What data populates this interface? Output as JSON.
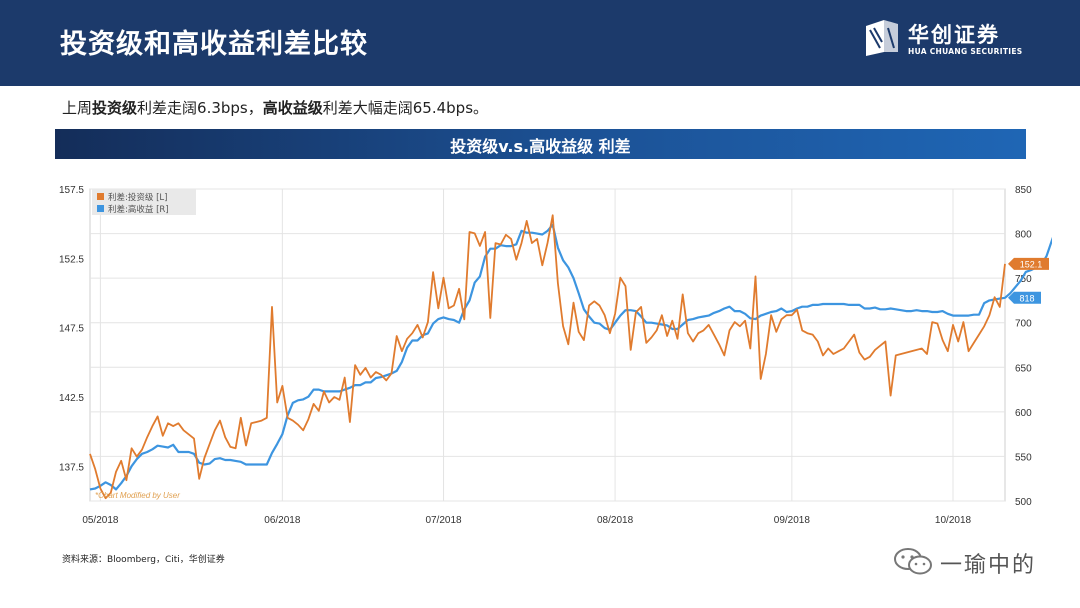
{
  "header": {
    "title": "投资级和高收益利差比较",
    "logo_cn": "华创证券",
    "logo_en": "HUA CHUANG SECURITIES"
  },
  "summary": {
    "p1": "上周",
    "b1": "投资级",
    "p2": "利差走阔6.3bps，",
    "b2": "高收益级",
    "p3": "利差大幅走阔65.4bps。"
  },
  "banner": {
    "title": "投资级v.s.高收益级 利差"
  },
  "source": "资料来源：Bloomberg，Citi，华创证券",
  "watermark": "一瑜中的",
  "colors": {
    "ig": "#e07b2e",
    "hy": "#3d95e0",
    "header": "#1c3a6b"
  },
  "chart_data": {
    "type": "line",
    "title": "",
    "watermark_note": "*Chart Modified by User",
    "x_ticks": [
      "05/2018",
      "06/2018",
      "07/2018",
      "08/2018",
      "09/2018",
      "10/2018"
    ],
    "y_left": {
      "min": 135,
      "max": 157.5,
      "ticks": [
        "157.5",
        "152.5",
        "147.5",
        "142.5",
        "137.5"
      ]
    },
    "y_right": {
      "min": 500,
      "max": 850,
      "ticks": [
        "850",
        "800",
        "750",
        "700",
        "650",
        "600",
        "550",
        "500"
      ]
    },
    "legend": [
      "利差:投资级 [L]",
      "利差:高收益 [R]"
    ],
    "end_labels": {
      "ig": "152.1",
      "hy": "818"
    },
    "series": [
      {
        "name": "利差:投资级 [L]",
        "axis": "left",
        "values": [
          138.4,
          137.3,
          135.9,
          135.2,
          135.6,
          137.1,
          137.9,
          136.5,
          138.8,
          138.2,
          138.7,
          139.6,
          140.4,
          141.1,
          139.7,
          140.6,
          140.4,
          140.6,
          140.1,
          139.8,
          139.5,
          136.6,
          138.1,
          139.1,
          140.1,
          140.8,
          139.6,
          138.9,
          138.8,
          141.0,
          139.0,
          140.6,
          140.7,
          140.8,
          141.0,
          149.0,
          142.1,
          143.3,
          141.0,
          140.8,
          140.5,
          140.1,
          140.9,
          142.0,
          141.5,
          142.9,
          142.1,
          142.5,
          142.3,
          143.9,
          140.7,
          144.8,
          144.1,
          144.6,
          143.9,
          144.3,
          144.1,
          143.7,
          144.2,
          146.9,
          145.8,
          146.7,
          147.1,
          147.7,
          146.8,
          147.9,
          151.5,
          148.9,
          151.1,
          148.9,
          149.1,
          150.3,
          148.1,
          154.4,
          154.3,
          153.4,
          154.4,
          148.2,
          153.6,
          153.5,
          154.2,
          153.9,
          152.4,
          153.6,
          155.2,
          153.6,
          153.9,
          152.0,
          153.6,
          155.6,
          150.7,
          147.6,
          146.3,
          149.3,
          147.2,
          146.6,
          149.1,
          149.4,
          149.1,
          148.4,
          147.1,
          148.5,
          151.1,
          150.5,
          145.9,
          148.6,
          149.0,
          146.4,
          146.8,
          147.3,
          148.4,
          146.9,
          148.0,
          146.7,
          149.9,
          147.1,
          146.5,
          147.1,
          147.3,
          147.7,
          147.0,
          146.3,
          145.5,
          147.3,
          147.9,
          147.6,
          148.0,
          146.0,
          151.2,
          143.8,
          145.6,
          148.4,
          147.2,
          148.1,
          148.4,
          148.4,
          148.8,
          147.3,
          147.1,
          147.0,
          146.5,
          145.5,
          146.0,
          145.6,
          145.8,
          146.0,
          146.5,
          147.0,
          145.7,
          145.2,
          145.4,
          145.9,
          146.2,
          146.5,
          142.6,
          145.5,
          145.6,
          145.7,
          145.8,
          145.9,
          146.0,
          145.6,
          147.9,
          147.8,
          146.6,
          145.8,
          147.7,
          146.5,
          147.9,
          145.8,
          146.4,
          147.0,
          147.6,
          148.4,
          149.7,
          149.0,
          152.1
        ]
      },
      {
        "name": "利差:高收益 [R]",
        "axis": "right",
        "values": [
          513,
          514,
          517,
          521,
          518,
          513,
          520,
          528,
          539,
          547,
          553,
          555,
          558,
          562,
          561,
          560,
          563,
          555,
          555,
          555,
          553,
          543,
          541,
          542,
          547,
          548,
          546,
          546,
          545,
          544,
          541,
          541,
          541,
          541,
          541,
          554,
          564,
          575,
          596,
          610,
          613,
          614,
          617,
          625,
          625,
          623,
          623,
          623,
          623,
          625,
          627,
          630,
          630,
          633,
          633,
          638,
          639,
          641,
          643,
          646,
          656,
          672,
          680,
          680,
          686,
          688,
          699,
          704,
          706,
          704,
          703,
          700,
          715,
          725,
          745,
          752,
          774,
          783,
          783,
          787,
          786,
          786,
          788,
          803,
          801,
          801,
          800,
          799,
          803,
          810,
          784,
          770,
          762,
          750,
          733,
          715,
          707,
          700,
          699,
          694,
          692,
          700,
          708,
          714,
          714,
          713,
          707,
          700,
          700,
          699,
          698,
          697,
          693,
          693,
          698,
          703,
          704,
          706,
          707,
          708,
          711,
          713,
          716,
          718,
          713,
          713,
          710,
          705,
          704,
          708,
          710,
          712,
          713,
          716,
          712,
          713,
          716,
          718,
          718,
          720,
          720,
          721,
          721,
          721,
          721,
          721,
          720,
          720,
          720,
          716,
          716,
          717,
          715,
          715,
          716,
          715,
          714,
          713,
          713,
          714,
          713,
          713,
          712,
          712,
          713,
          710,
          708,
          708,
          708,
          708,
          709,
          709,
          722,
          725,
          726,
          727,
          728,
          733,
          740,
          747,
          757,
          759,
          762,
          765,
          775,
          792,
          808,
          818
        ]
      }
    ]
  }
}
